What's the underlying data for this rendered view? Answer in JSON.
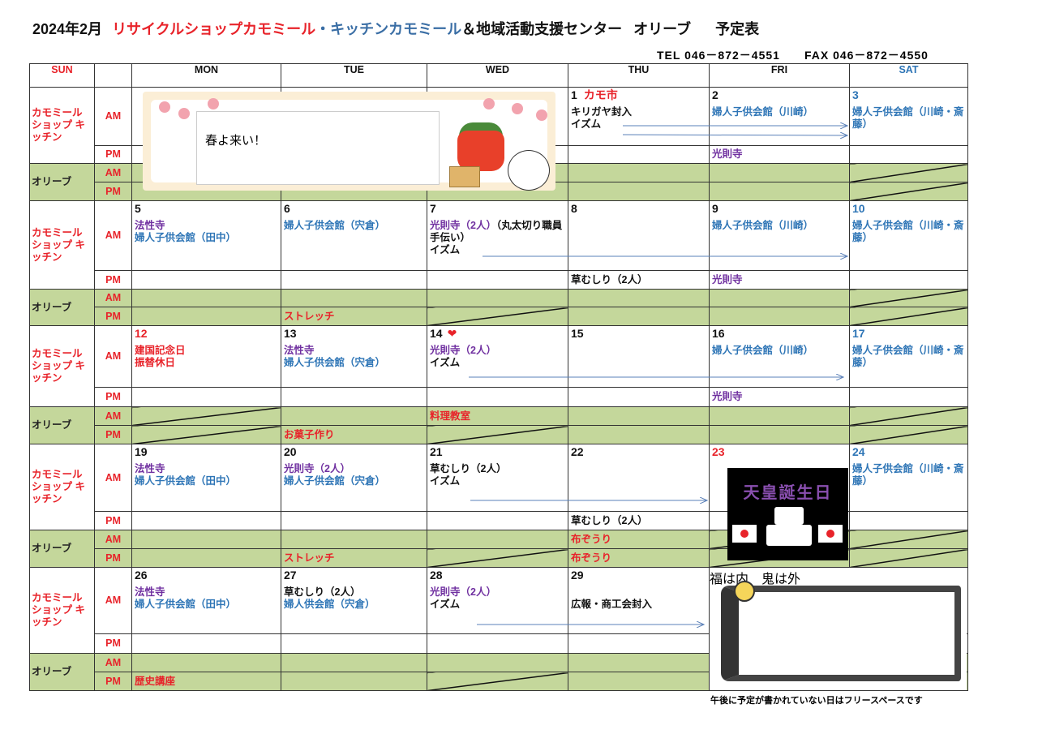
{
  "title": {
    "month": "2024年2月",
    "part_red": "リサイクルショップカモミール",
    "part_blue": "・キッチンカモミール",
    "part_rest": "＆地域活動支援センター",
    "olive": "オリーブ",
    "suffix": "予定表"
  },
  "contact": {
    "tel": "TEL 046－872－4551",
    "fax": "FAX 046－872－4550"
  },
  "colors": {
    "red": "#e8232a",
    "blue": "#2e75b6",
    "purple": "#7030a0",
    "black": "#111111",
    "green_bg": "#c4d79b"
  },
  "header": {
    "days": [
      {
        "label": "SUN",
        "color": "red"
      },
      {
        "label": "",
        "color": "black"
      },
      {
        "label": "MON",
        "color": "black"
      },
      {
        "label": "TUE",
        "color": "black"
      },
      {
        "label": "WED",
        "color": "black"
      },
      {
        "label": "THU",
        "color": "black"
      },
      {
        "label": "FRI",
        "color": "black"
      },
      {
        "label": "SAT",
        "color": "blue"
      }
    ]
  },
  "labels": {
    "shop": "カモミール ショップ キッチン",
    "olive": "オリーブ",
    "am": "AM",
    "pm": "PM"
  },
  "weeks": [
    {
      "days": [
        null,
        null,
        null,
        {
          "date": "1",
          "date_color": "black",
          "date_extra": "カモ市",
          "am": [
            {
              "text": "キリガヤ封入",
              "color": "black"
            },
            {
              "text": "イズム",
              "color": "black"
            }
          ],
          "pm": [],
          "olive_am": "",
          "olive_pm": ""
        },
        {
          "date": "2",
          "date_color": "black",
          "am": [
            {
              "text": "婦人子供会館（川崎）",
              "color": "blue"
            }
          ],
          "pm": [
            {
              "text": "光則寺",
              "color": "purple"
            }
          ],
          "olive_am": "",
          "olive_pm": ""
        },
        {
          "date": "3",
          "date_color": "blue",
          "am": [
            {
              "text": "婦人子供会館（川崎・斎藤）",
              "color": "blue"
            }
          ],
          "pm": [],
          "olive_am": "",
          "olive_pm": "",
          "olive_am_slash": true,
          "olive_pm_slash": true
        }
      ]
    },
    {
      "days": [
        {
          "date": "5",
          "date_color": "black",
          "am": [
            {
              "text": "法性寺",
              "color": "purple"
            },
            {
              "text": "婦人子供会館（田中）",
              "color": "blue"
            }
          ],
          "pm": [],
          "olive_am": "",
          "olive_pm": ""
        },
        {
          "date": "6",
          "date_color": "black",
          "am": [
            {
              "text": "婦人子供会館（宍倉）",
              "color": "blue"
            }
          ],
          "pm": [],
          "olive_am": "",
          "olive_pm": "ストレッチ"
        },
        {
          "date": "7",
          "date_color": "black",
          "am": [
            {
              "text": "光則寺（2人）",
              "color": "purple"
            },
            {
              "text": "（丸太切り職員手伝い）",
              "color": "black",
              "join": true
            },
            {
              "text": "イズム",
              "color": "black"
            }
          ],
          "pm": [],
          "olive_am": "",
          "olive_pm": "",
          "olive_pm_slash": true
        },
        {
          "date": "8",
          "date_color": "black",
          "am": [],
          "pm": [
            {
              "text": "草むしり（2人）",
              "color": "black"
            }
          ],
          "olive_am": "",
          "olive_pm": ""
        },
        {
          "date": "9",
          "date_color": "black",
          "am": [
            {
              "text": "婦人子供会館（川崎）",
              "color": "blue"
            }
          ],
          "pm": [
            {
              "text": "光則寺",
              "color": "purple"
            }
          ],
          "olive_am": "",
          "olive_pm": ""
        },
        {
          "date": "10",
          "date_color": "blue",
          "am": [
            {
              "text": "婦人子供会館（川崎・斎藤）",
              "color": "blue"
            }
          ],
          "pm": [],
          "olive_am": "",
          "olive_pm": "",
          "olive_am_slash": true,
          "olive_pm_slash": true
        }
      ]
    },
    {
      "days": [
        {
          "date": "12",
          "date_color": "red",
          "am": [
            {
              "text": "建国記念日",
              "color": "red"
            },
            {
              "text": "振替休日",
              "color": "red"
            }
          ],
          "pm": [],
          "olive_am": "",
          "olive_pm": "",
          "olive_am_slash": true,
          "olive_pm_slash": true
        },
        {
          "date": "13",
          "date_color": "black",
          "am": [
            {
              "text": "法性寺",
              "color": "purple"
            },
            {
              "text": "婦人子供会館（宍倉）",
              "color": "blue"
            }
          ],
          "pm": [],
          "olive_am": "",
          "olive_pm": "お菓子作り"
        },
        {
          "date": "14",
          "date_color": "black",
          "date_icon": "❤",
          "am": [
            {
              "text": "光則寺（2人）",
              "color": "purple"
            },
            {
              "text": "イズム",
              "color": "black"
            }
          ],
          "pm": [],
          "olive_am": "料理教室",
          "olive_pm": "",
          "olive_pm_slash": true
        },
        {
          "date": "15",
          "date_color": "black",
          "am": [],
          "pm": [],
          "olive_am": "",
          "olive_pm": ""
        },
        {
          "date": "16",
          "date_color": "black",
          "am": [
            {
              "text": "婦人子供会館（川崎）",
              "color": "blue"
            }
          ],
          "pm": [
            {
              "text": "光則寺",
              "color": "purple"
            }
          ],
          "olive_am": "",
          "olive_pm": ""
        },
        {
          "date": "17",
          "date_color": "blue",
          "am": [
            {
              "text": "婦人子供会館（川崎・斎藤）",
              "color": "blue"
            }
          ],
          "pm": [],
          "olive_am": "",
          "olive_pm": "",
          "olive_am_slash": true,
          "olive_pm_slash": true
        }
      ]
    },
    {
      "days": [
        {
          "date": "19",
          "date_color": "black",
          "am": [
            {
              "text": "法性寺",
              "color": "purple"
            },
            {
              "text": "婦人子供会館（田中）",
              "color": "blue"
            }
          ],
          "pm": [],
          "olive_am": "",
          "olive_pm": ""
        },
        {
          "date": "20",
          "date_color": "black",
          "am": [
            {
              "text": "光則寺（2人）",
              "color": "purple"
            },
            {
              "text": "婦人子供会館（宍倉）",
              "color": "blue"
            }
          ],
          "pm": [],
          "olive_am": "",
          "olive_pm": "ストレッチ"
        },
        {
          "date": "21",
          "date_color": "black",
          "am": [
            {
              "text": "草むしり（2人）",
              "color": "black"
            },
            {
              "text": "イズム",
              "color": "black"
            }
          ],
          "pm": [],
          "olive_am": "",
          "olive_pm": "",
          "olive_pm_slash": true
        },
        {
          "date": "22",
          "date_color": "black",
          "am": [],
          "pm": [
            {
              "text": "草むしり（2人）",
              "color": "black"
            }
          ],
          "olive_am": "布ぞうり",
          "olive_pm": "布ぞうり"
        },
        {
          "date": "23",
          "date_color": "red",
          "am": [],
          "pm": [],
          "olive_am": "",
          "olive_pm": "",
          "olive_am_slash": true,
          "olive_pm_slash": true
        },
        {
          "date": "24",
          "date_color": "blue",
          "am": [
            {
              "text": "婦人子供会館（川崎・斎藤）",
              "color": "blue"
            }
          ],
          "pm": [],
          "olive_am": "",
          "olive_pm": "",
          "olive_am_slash": true,
          "olive_pm_slash": true
        }
      ]
    },
    {
      "days": [
        {
          "date": "26",
          "date_color": "black",
          "am": [
            {
              "text": "法性寺",
              "color": "purple"
            },
            {
              "text": "婦人子供会館（田中）",
              "color": "blue"
            }
          ],
          "pm": [],
          "olive_am": "",
          "olive_pm": "歴史講座"
        },
        {
          "date": "27",
          "date_color": "black",
          "am": [
            {
              "text": "草むしり（2人）",
              "color": "black"
            },
            {
              "text": "婦人供会館（宍倉）",
              "color": "blue"
            }
          ],
          "pm": [],
          "olive_am": "",
          "olive_pm": ""
        },
        {
          "date": "28",
          "date_color": "black",
          "am": [
            {
              "text": "光則寺（2人）",
              "color": "purple"
            },
            {
              "text": "イズム",
              "color": "black"
            }
          ],
          "pm": [],
          "olive_am": "",
          "olive_pm": "",
          "olive_pm_slash": true
        },
        {
          "date": "29",
          "date_color": "black",
          "am": [
            {
              "text": "",
              "color": "black"
            },
            {
              "text": "広報・商工会封入",
              "color": "black"
            }
          ],
          "pm": [],
          "olive_am": "",
          "olive_pm": ""
        },
        null,
        null
      ]
    }
  ],
  "images": {
    "spring_text": "春よ来い！",
    "emperor_text": "天皇誕生日",
    "setsubun_text": "福は内　鬼は外"
  },
  "footer_note": "午後に予定が書かれていない日はフリースペースです"
}
